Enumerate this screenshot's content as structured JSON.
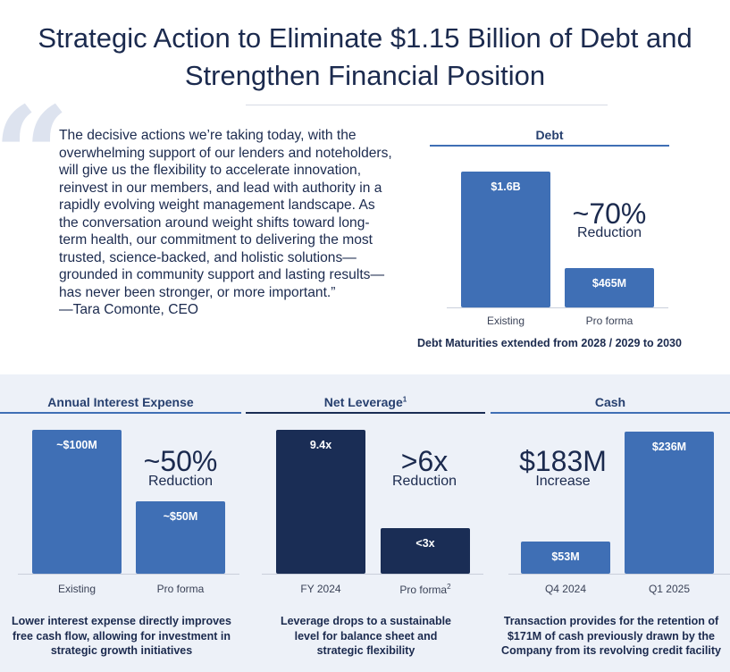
{
  "title": "Strategic Action to Eliminate $1.15 Billion of Debt and Strengthen Financial Position",
  "quote": {
    "text": "The decisive actions we’re taking today, with the overwhelming support of our lenders and noteholders, will give us the flexibility to accelerate innovation, reinvest in our members, and lead with authority in a rapidly evolving weight management landscape. As the conversation around weight shifts toward long-term health, our commitment to delivering the most trusted, science-backed, and holistic solutions—grounded in community support and lasting results—has never been stronger, or more important.”",
    "attribution": "—Tara Comonte, CEO"
  },
  "chart_data": [
    {
      "type": "bar",
      "title": "Debt",
      "categories": [
        "Existing",
        "Pro forma"
      ],
      "values": [
        1600,
        465
      ],
      "unit": "$M",
      "value_labels": [
        "$1.6B",
        "$465M"
      ],
      "ylim": [
        0,
        1700
      ],
      "highlight": {
        "value": "~70%",
        "label": "Reduction"
      },
      "caption": "Debt Maturities extended from 2028 / 2029 to 2030",
      "colors": [
        "#3f6fb5",
        "#3f6fb5"
      ]
    },
    {
      "type": "bar",
      "title": "Annual Interest Expense",
      "categories": [
        "Existing",
        "Pro forma"
      ],
      "values": [
        100,
        50
      ],
      "unit": "$M",
      "value_labels": [
        "~$100M",
        "~$50M"
      ],
      "ylim": [
        0,
        100
      ],
      "highlight": {
        "value": "~50%",
        "label": "Reduction"
      },
      "caption": "Lower interest expense directly improves free cash flow, allowing for investment in strategic growth initiatives",
      "colors": [
        "#3f6fb5",
        "#3f6fb5"
      ]
    },
    {
      "type": "bar",
      "title": "Net Leverage",
      "title_superscript": "1",
      "categories": [
        "FY 2024",
        "Pro forma"
      ],
      "category_superscripts": [
        "",
        "2"
      ],
      "values": [
        9.4,
        3
      ],
      "unit": "x",
      "value_labels": [
        "9.4x",
        "<3x"
      ],
      "ylim": [
        0,
        9.4
      ],
      "highlight": {
        "value": ">6x",
        "label": "Reduction"
      },
      "caption": "Leverage drops to a sustainable level for balance sheet and strategic flexibility",
      "colors": [
        "#1a2d55",
        "#1a2d55"
      ]
    },
    {
      "type": "bar",
      "title": "Cash",
      "categories": [
        "Q4 2024",
        "Q1 2025"
      ],
      "values": [
        53,
        236
      ],
      "unit": "$M",
      "value_labels": [
        "$53M",
        "$236M"
      ],
      "ylim": [
        0,
        236
      ],
      "highlight": {
        "value": "$183M",
        "label": "Increase"
      },
      "caption": "Transaction provides for the retention of $171M of cash previously drawn by the Company from its revolving credit facility",
      "colors": [
        "#3f6fb5",
        "#3f6fb5"
      ]
    }
  ]
}
